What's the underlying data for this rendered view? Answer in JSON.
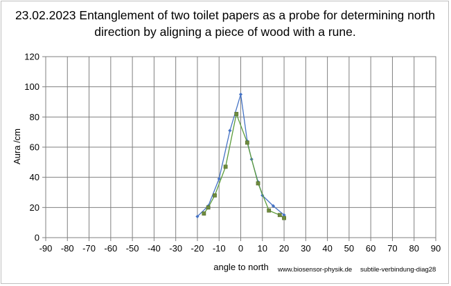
{
  "chart_data": {
    "type": "line",
    "title": "23.02.2023 Entanglement of two toilet papers as a probe for determining north direction by aligning a piece of wood with a rune.",
    "xlabel": "angle to north",
    "ylabel": "Aura /cm",
    "xlim": [
      -90,
      90
    ],
    "ylim": [
      0,
      120
    ],
    "xticks": [
      -90,
      -80,
      -70,
      -60,
      -50,
      -40,
      -30,
      -20,
      -10,
      0,
      10,
      20,
      30,
      40,
      50,
      60,
      70,
      80,
      90
    ],
    "yticks": [
      0,
      20,
      40,
      60,
      80,
      100,
      120
    ],
    "grid": true,
    "series": [
      {
        "color": "#4472c4",
        "marker": "diamond",
        "points": [
          [
            -20,
            14
          ],
          [
            -15,
            21
          ],
          [
            -10,
            39
          ],
          [
            -5,
            71
          ],
          [
            0,
            95
          ],
          [
            3,
            64
          ],
          [
            5,
            52
          ],
          [
            8,
            37
          ],
          [
            10,
            28
          ],
          [
            15,
            21
          ],
          [
            20,
            15
          ]
        ]
      },
      {
        "color": "#5b9b3a",
        "marker": "square",
        "points": [
          [
            -17,
            16
          ],
          [
            -15,
            20
          ],
          [
            -12,
            28
          ],
          [
            -7,
            47
          ],
          [
            -2,
            82
          ],
          [
            3,
            63
          ],
          [
            8,
            36
          ],
          [
            13,
            18
          ],
          [
            18,
            15
          ],
          [
            20,
            13
          ]
        ]
      }
    ],
    "annotations": [
      "www.biosensor-physik.de",
      "subtile-verbindung-diag28"
    ]
  }
}
